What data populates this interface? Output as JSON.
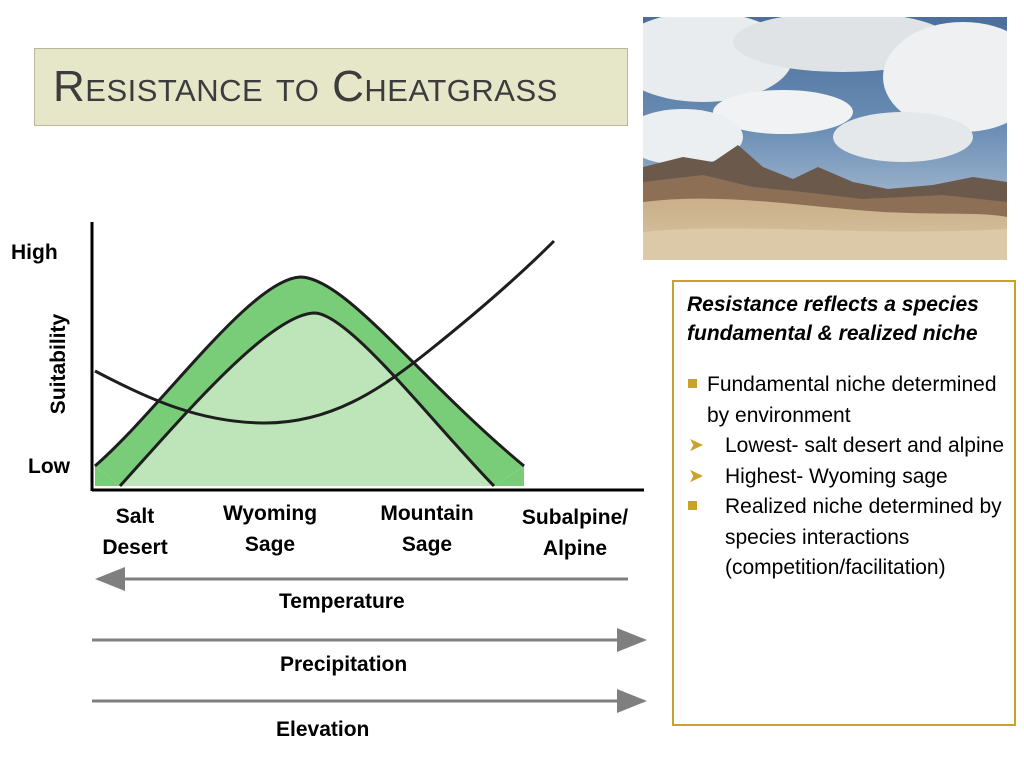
{
  "title": "Resistance to Cheatgrass",
  "photo": {
    "description_icon": "landscape-photo-icon"
  },
  "diagram": {
    "y_axis": {
      "label": "Suitability",
      "high": "High",
      "low": "Low"
    },
    "zones": [
      "Salt\nDesert",
      "Wyoming\nSage",
      "Mountain\nSage",
      "Subalpine/\nAlpine"
    ],
    "gradients": {
      "temperature": "Temperature",
      "precipitation": "Precipitation",
      "elevation": "Elevation"
    },
    "colors": {
      "fundamental": "#7acd78",
      "realized": "#bde5b9",
      "line": "#1e1e1e",
      "arrow": "#7f7f7f"
    }
  },
  "textbox": {
    "heading": "Resistance reflects a species  fundamental  & realized niche",
    "items": [
      {
        "type": "bullet",
        "text": " Fundamental niche determined  by environment"
      },
      {
        "type": "arrow",
        "text": " Lowest- salt desert and alpine"
      },
      {
        "type": "arrow",
        "text": " Highest- Wyoming sage"
      },
      {
        "type": "bullet",
        "text": "Realized niche determined by species interactions (competition/facilitation)"
      }
    ],
    "border_color": "#c9a227"
  }
}
